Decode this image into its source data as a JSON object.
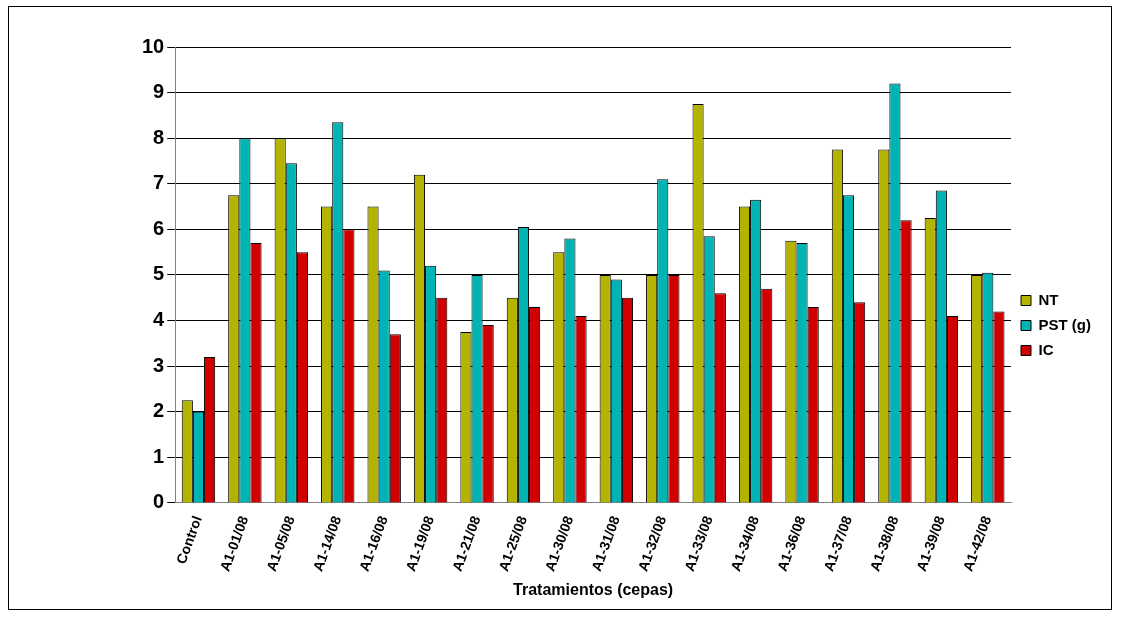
{
  "chart_data": {
    "type": "bar",
    "xlabel": "Tratamientos (cepas)",
    "categories": [
      "Control",
      "A1-01/08",
      "A1-05/08",
      "A1-14/08",
      "A1-16/08",
      "A1-19/08",
      "A1-21/08",
      "A1-25/08",
      "A1-30/08",
      "A1-31/08",
      "A1-32/08",
      "A1-33/08",
      "A1-34/08",
      "A1-36/08",
      "A1-37/08",
      "A1-38/08",
      "A1-39/08",
      "A1-42/08"
    ],
    "series": [
      {
        "name": "NT",
        "color": "#b4b400",
        "values": [
          2.25,
          6.75,
          8.0,
          6.5,
          6.5,
          7.2,
          3.75,
          4.5,
          5.5,
          5.0,
          5.0,
          8.75,
          6.5,
          5.75,
          7.75,
          7.75,
          6.25,
          5.0
        ]
      },
      {
        "name": "PST (g)",
        "color": "#00b4b4",
        "values": [
          2.0,
          8.0,
          7.45,
          8.35,
          5.1,
          5.2,
          5.0,
          6.05,
          5.8,
          4.9,
          7.1,
          5.85,
          6.65,
          5.7,
          6.75,
          9.2,
          6.85,
          5.05
        ]
      },
      {
        "name": "IC",
        "color": "#d00000",
        "values": [
          3.2,
          5.7,
          5.5,
          6.0,
          3.7,
          4.5,
          3.9,
          4.3,
          4.1,
          4.5,
          5.0,
          4.6,
          4.7,
          4.3,
          4.4,
          6.2,
          4.1,
          4.2
        ]
      }
    ],
    "ylim": [
      0,
      10
    ],
    "yticks": [
      0,
      1,
      2,
      3,
      4,
      5,
      6,
      7,
      8,
      9,
      10
    ],
    "grid": "y",
    "legend": "right"
  }
}
